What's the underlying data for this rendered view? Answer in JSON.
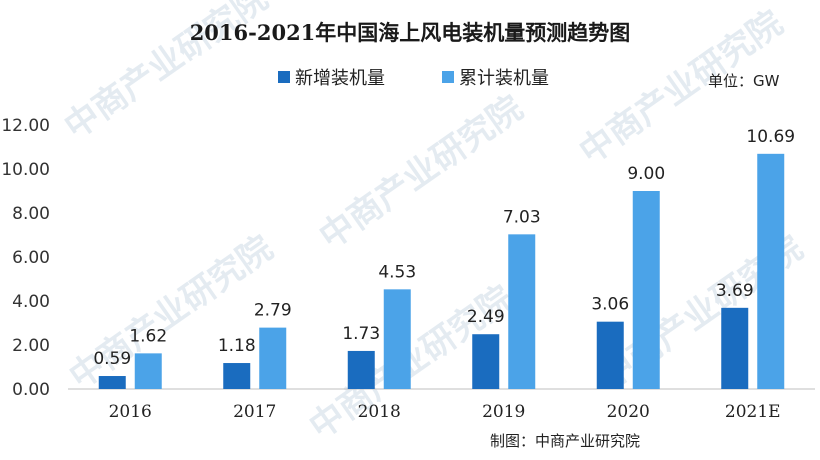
{
  "colors": {
    "new": "#1a6cbf",
    "cumulative": "#4ba3e8",
    "axis": "#bfbfbf"
  },
  "unit_label": "单位：GW",
  "source_label": "制图：中商产业研究院",
  "watermark": "中商产业研究院",
  "chart_data": {
    "type": "bar",
    "title": "2016-2021年中国海上风电装机量预测趋势图",
    "xlabel": "",
    "ylabel": "",
    "ylim": [
      0,
      12
    ],
    "yticks": [
      "0.00",
      "2.00",
      "4.00",
      "6.00",
      "8.00",
      "10.00",
      "12.00"
    ],
    "categories": [
      "2016",
      "2017",
      "2018",
      "2019",
      "2020",
      "2021E"
    ],
    "legend_position": "top",
    "grid": false,
    "series": [
      {
        "name": "新增装机量",
        "values": [
          0.59,
          1.18,
          1.73,
          2.49,
          3.06,
          3.69
        ],
        "labels": [
          "0.59",
          "1.18",
          "1.73",
          "2.49",
          "3.06",
          "3.69"
        ]
      },
      {
        "name": "累计装机量",
        "values": [
          1.62,
          2.79,
          4.53,
          7.03,
          9.0,
          10.69
        ],
        "labels": [
          "1.62",
          "2.79",
          "4.53",
          "7.03",
          "9.00",
          "10.69"
        ]
      }
    ]
  }
}
